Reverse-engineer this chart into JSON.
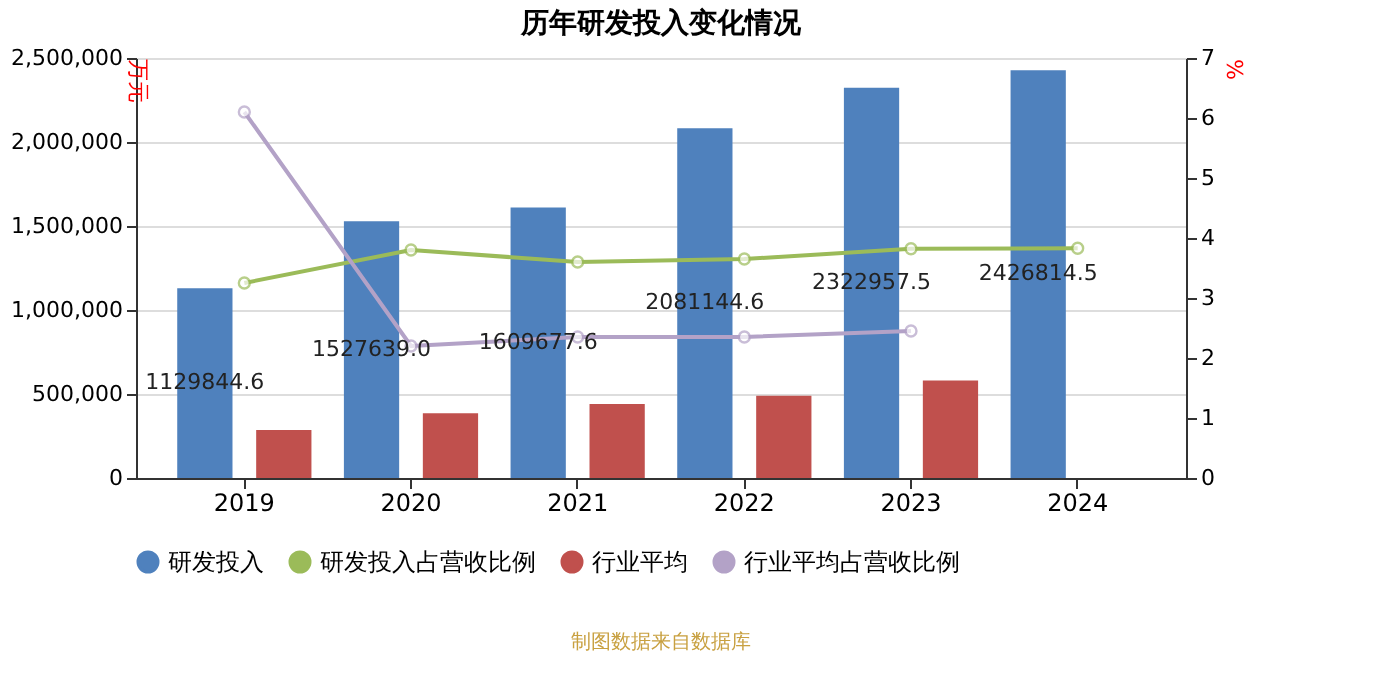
{
  "chart_data": {
    "type": "bar",
    "title": "历年研发投入变化情况",
    "categories": [
      "2019",
      "2020",
      "2021",
      "2022",
      "2023",
      "2024"
    ],
    "ylabel": "万元",
    "y2label": "%",
    "series": [
      {
        "name": "研发投入",
        "color": "#4f81bd",
        "values": [
          1129844.6,
          1527639.0,
          1609677.6,
          2081144.6,
          2322957.5,
          2426814.5
        ],
        "value_labels": [
          "1129844.6",
          "1527639.0",
          "1609677.6",
          "2081144.6",
          "2322957.5",
          "2426814.5"
        ]
      },
      {
        "name": "研发投入占营收比例",
        "type": "line",
        "axis": "y2",
        "color": "#9bbb59",
        "values": [
          3.25,
          3.8,
          3.6,
          3.65,
          3.82,
          3.83
        ]
      },
      {
        "name": "行业平均",
        "color": "#c0504d",
        "values": [
          285000,
          385000,
          440000,
          490000,
          580000,
          null
        ]
      },
      {
        "name": "行业平均占营收比例",
        "type": "line",
        "axis": "y2",
        "color": "#b3a2c7",
        "values": [
          6.1,
          2.2,
          2.35,
          2.35,
          2.45,
          null
        ]
      }
    ],
    "ylim": [
      0,
      2500000
    ],
    "yticks": [
      0,
      {
        "value": 500000,
        "label": "500,000"
      },
      {
        "value": 1000000,
        "label": "1,000,000"
      },
      {
        "value": 1500000,
        "label": "1,500,000"
      },
      {
        "value": 2000000,
        "label": "2,000,000"
      },
      {
        "value": 2500000,
        "label": "2,500,000"
      }
    ],
    "y2lim": [
      0,
      7
    ],
    "y2ticks": [
      0,
      1,
      2,
      3,
      4,
      5,
      6,
      7
    ],
    "grid": "y",
    "legend": "bottom",
    "marker": "circle",
    "annotations": [
      "制图数据来自数据库"
    ]
  }
}
